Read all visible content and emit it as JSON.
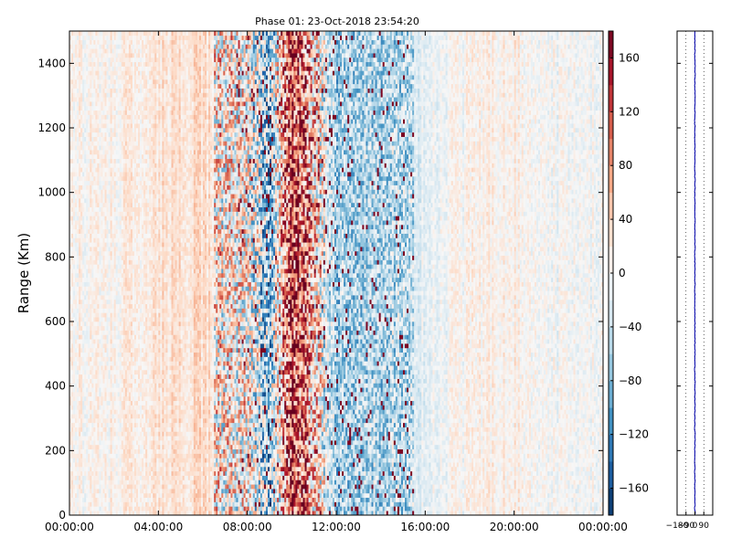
{
  "chart_data": [
    {
      "type": "heatmap",
      "title": "Phase 01: 23-Oct-2018 23:54:20",
      "xlabel": "",
      "ylabel": "Range (Km)",
      "x_ticks": [
        "00:00:00",
        "04:00:00",
        "08:00:00",
        "12:00:00",
        "16:00:00",
        "20:00:00",
        "00:00:00"
      ],
      "x_range_hours": [
        0,
        24
      ],
      "y_ticks": [
        0,
        200,
        400,
        600,
        800,
        1000,
        1200,
        1400
      ],
      "ylim": [
        0,
        1500
      ],
      "colorbar": {
        "colormap": "RdBu_r",
        "vmin": -180,
        "vmax": 180,
        "ticks": [
          160,
          120,
          80,
          40,
          0,
          -40,
          -80,
          -120,
          -160
        ]
      },
      "grid": false,
      "cells_x": 288,
      "cells_y": 110,
      "mean_phase_by_hour": [
        {
          "hour": 0,
          "value": 5
        },
        {
          "hour": 2,
          "value": 8
        },
        {
          "hour": 4,
          "value": 25
        },
        {
          "hour": 6,
          "value": 30
        },
        {
          "hour": 8,
          "value": 10
        },
        {
          "hour": 9,
          "value": -70
        },
        {
          "hour": 10,
          "value": 140
        },
        {
          "hour": 12,
          "value": -60
        },
        {
          "hour": 15,
          "value": -45
        },
        {
          "hour": 16,
          "value": -10
        },
        {
          "hour": 18,
          "value": 5
        },
        {
          "hour": 20,
          "value": 12
        },
        {
          "hour": 22,
          "value": -5
        },
        {
          "hour": 24,
          "value": 0
        }
      ],
      "scatter_hours": [
        6.5,
        11.5
      ]
    },
    {
      "type": "line",
      "title": "",
      "xlabel": "",
      "ylabel": "",
      "x_ticks": [
        "-180",
        "-90",
        "0",
        "90"
      ],
      "xlim": [
        -180,
        180
      ],
      "ylim": [
        0,
        1500
      ],
      "grid": true,
      "series_color": "#0000aa",
      "mean_value": 0,
      "spread": 4
    }
  ]
}
